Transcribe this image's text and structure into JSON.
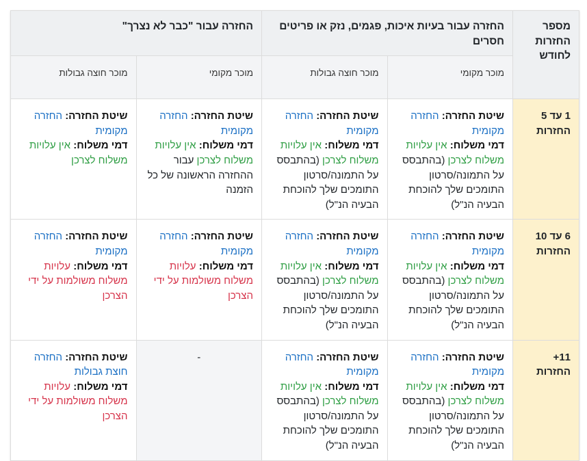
{
  "colors": {
    "method": "#1a6fc4",
    "free": "#2f9e44",
    "paid": "#d6334a",
    "row_header_bg": "#fdf1cc",
    "header_bg": "#eef0f2"
  },
  "header": {
    "returns_per_month": "מספר החזרות לחודש",
    "group_quality": "החזרה עבור בעיות איכות, פגמים, נזק או פריטים חסרים",
    "group_no_longer_needed": "החזרה עבור \"כבר לא נצרך\"",
    "local_seller": "מוכר מקומי",
    "cross_border_seller": "מוכר חוצה גבולות"
  },
  "labels": {
    "method": "שיטת החזרה:",
    "shipping": "דמי משלוח:"
  },
  "values": {
    "local_return": "החזרה מקומית",
    "cross_border_return": "החזרה חוצת גבולות",
    "free_shipping": "אין עלויות משלוח לצרכן",
    "evidence_note": "(בהתבסס על התמונה/סרטון התומכים שלך להוכחת הבעיה הנ\"ל)",
    "first_return_note": "עבור ההחזרה הראשונה של כל הזמנה",
    "paid_shipping": "עלויות משלוח משולמות על ידי הצרכן",
    "none": "-"
  },
  "rows": [
    {
      "label": "1 עד 5 החזרות"
    },
    {
      "label": "6 עד 10 החזרות"
    },
    {
      "label": "11+ החזרות"
    }
  ]
}
